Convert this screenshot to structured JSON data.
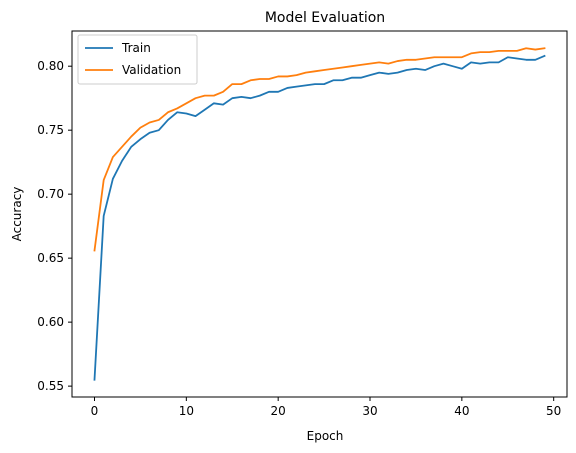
{
  "chart_data": {
    "type": "line",
    "title": "Model Evaluation",
    "xlabel": "Epoch",
    "ylabel": "Accuracy",
    "xlim": [
      -2.45,
      51.45
    ],
    "ylim": [
      0.5415,
      0.8275
    ],
    "xticks": [
      0,
      10,
      20,
      30,
      40,
      50
    ],
    "xtick_labels": [
      "0",
      "10",
      "20",
      "30",
      "40",
      "50"
    ],
    "yticks": [
      0.55,
      0.6,
      0.65,
      0.7,
      0.75,
      0.8
    ],
    "ytick_labels": [
      "0.55",
      "0.60",
      "0.65",
      "0.70",
      "0.75",
      "0.80"
    ],
    "grid": false,
    "legend_position": "upper-left",
    "x": [
      0,
      1,
      2,
      3,
      4,
      5,
      6,
      7,
      8,
      9,
      10,
      11,
      12,
      13,
      14,
      15,
      16,
      17,
      18,
      19,
      20,
      21,
      22,
      23,
      24,
      25,
      26,
      27,
      28,
      29,
      30,
      31,
      32,
      33,
      34,
      35,
      36,
      37,
      38,
      39,
      40,
      41,
      42,
      43,
      44,
      45,
      46,
      47,
      48,
      49
    ],
    "series": [
      {
        "name": "Train",
        "color": "#1f77b4",
        "values": [
          0.555,
          0.683,
          0.712,
          0.726,
          0.737,
          0.743,
          0.748,
          0.75,
          0.758,
          0.764,
          0.763,
          0.761,
          0.766,
          0.771,
          0.77,
          0.775,
          0.776,
          0.775,
          0.777,
          0.78,
          0.78,
          0.783,
          0.784,
          0.785,
          0.786,
          0.786,
          0.789,
          0.789,
          0.791,
          0.791,
          0.793,
          0.795,
          0.794,
          0.795,
          0.797,
          0.798,
          0.797,
          0.8,
          0.802,
          0.8,
          0.798,
          0.803,
          0.802,
          0.803,
          0.803,
          0.807,
          0.806,
          0.805,
          0.805,
          0.808
        ]
      },
      {
        "name": "Validation",
        "color": "#ff7f0e",
        "values": [
          0.656,
          0.711,
          0.729,
          0.737,
          0.745,
          0.752,
          0.756,
          0.758,
          0.764,
          0.767,
          0.771,
          0.775,
          0.777,
          0.777,
          0.78,
          0.786,
          0.786,
          0.789,
          0.79,
          0.79,
          0.792,
          0.792,
          0.793,
          0.795,
          0.796,
          0.797,
          0.798,
          0.799,
          0.8,
          0.801,
          0.802,
          0.803,
          0.802,
          0.804,
          0.805,
          0.805,
          0.806,
          0.807,
          0.807,
          0.807,
          0.807,
          0.81,
          0.811,
          0.811,
          0.812,
          0.812,
          0.812,
          0.814,
          0.813,
          0.814
        ]
      }
    ]
  }
}
